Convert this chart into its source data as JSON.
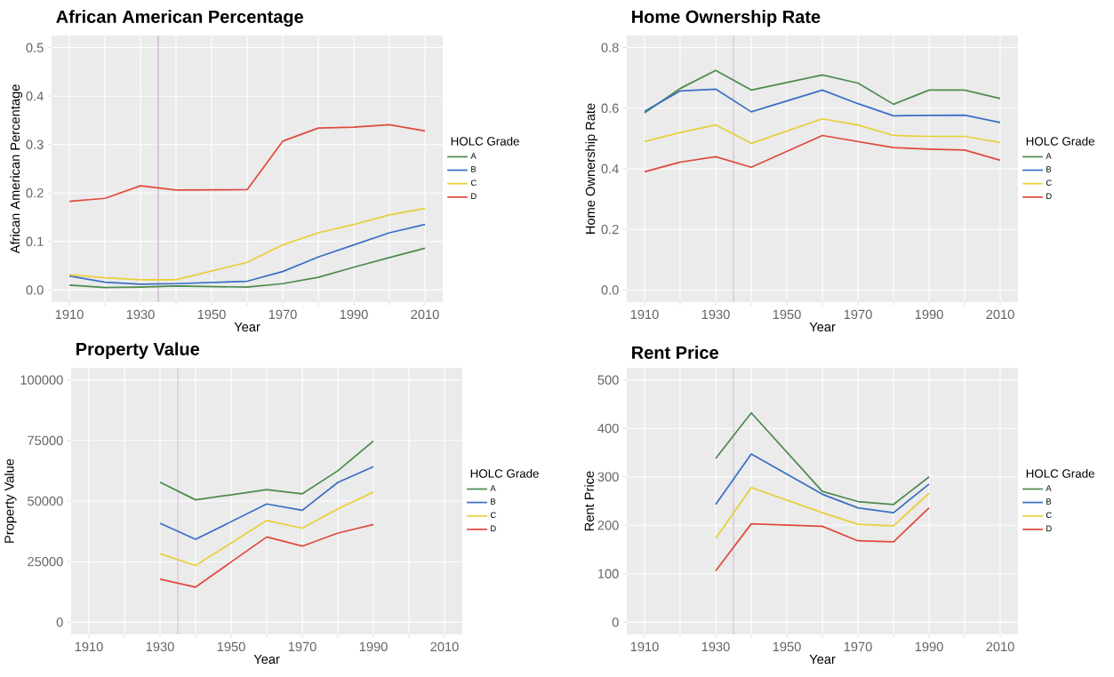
{
  "chart_data": [
    {
      "type": "line",
      "title": "African American Percentage",
      "xlabel": "Year",
      "ylabel": "African American Percentage",
      "legend_title": "HOLC Grade",
      "legend": "right",
      "grid": true,
      "x": [
        1910,
        1920,
        1930,
        1940,
        1960,
        1970,
        1980,
        1990,
        2000,
        2010
      ],
      "xlim": [
        1905,
        2015
      ],
      "xticks": [
        1910,
        {
          "value": 1920,
          "label": null
        },
        1930,
        {
          "value": 1940,
          "label": null
        },
        1950,
        {
          "value": 1960,
          "label": null
        },
        1970,
        {
          "value": 1980,
          "label": null
        },
        1990,
        {
          "value": 2000,
          "label": null
        },
        2010
      ],
      "ylim": [
        -0.025,
        0.525
      ],
      "yticks": [
        {
          "value": 0,
          "label": "0.0"
        },
        {
          "value": 0.1,
          "label": "0.1"
        },
        {
          "value": 0.2,
          "label": "0.2"
        },
        {
          "value": 0.3,
          "label": "0.3"
        },
        {
          "value": 0.4,
          "label": "0.4"
        },
        {
          "value": 0.5,
          "label": "0.5"
        }
      ],
      "ref_lines": [
        {
          "axis": "x",
          "value": 1935,
          "color": "#c9a3cf"
        }
      ],
      "series": [
        {
          "name": "A",
          "color": "#4e8a4e",
          "values": [
            0.01,
            0.005,
            0.006,
            0.008,
            0.006,
            0.013,
            0.026,
            0.047,
            0.067,
            0.086
          ]
        },
        {
          "name": "B",
          "color": "#3a6fc4",
          "values": [
            0.029,
            0.016,
            0.012,
            0.013,
            0.018,
            0.038,
            0.068,
            0.093,
            0.118,
            0.135
          ]
        },
        {
          "name": "C",
          "color": "#e8cf3a",
          "values": [
            0.031,
            0.025,
            0.021,
            0.021,
            0.057,
            0.093,
            0.118,
            0.135,
            0.155,
            0.168
          ]
        },
        {
          "name": "D",
          "color": "#e04a3e",
          "values": [
            0.183,
            0.189,
            0.215,
            0.206,
            0.207,
            0.307,
            0.334,
            0.336,
            0.341,
            0.328
          ]
        }
      ]
    },
    {
      "type": "line",
      "title": "Home Ownership Rate",
      "xlabel": "Year",
      "ylabel": "Home Ownership Rate",
      "legend_title": "HOLC Grade",
      "legend": "right",
      "grid": true,
      "x": [
        1910,
        1920,
        1930,
        1940,
        1960,
        1970,
        1980,
        1990,
        2000,
        2010
      ],
      "xlim": [
        1905,
        2015
      ],
      "xticks": [
        1910,
        {
          "value": 1920,
          "label": null
        },
        1930,
        {
          "value": 1940,
          "label": null
        },
        1950,
        {
          "value": 1960,
          "label": null
        },
        1970,
        {
          "value": 1980,
          "label": null
        },
        1990,
        {
          "value": 2000,
          "label": null
        },
        2010
      ],
      "ylim": [
        -0.04,
        0.84
      ],
      "yticks": [
        {
          "value": 0,
          "label": "0.0"
        },
        {
          "value": 0.2,
          "label": "0.2"
        },
        {
          "value": 0.4,
          "label": "0.4"
        },
        {
          "value": 0.6,
          "label": "0.6"
        },
        {
          "value": 0.8,
          "label": "0.8"
        }
      ],
      "ref_lines": [
        {
          "axis": "x",
          "value": 1935,
          "color": "#c9a3cf"
        }
      ],
      "series": [
        {
          "name": "A",
          "color": "#4e8a4e",
          "values": [
            0.585,
            0.665,
            0.725,
            0.66,
            0.71,
            0.683,
            0.613,
            0.66,
            0.66,
            0.632
          ]
        },
        {
          "name": "B",
          "color": "#3a6fc4",
          "values": [
            0.59,
            0.657,
            0.663,
            0.588,
            0.66,
            0.615,
            0.575,
            0.576,
            0.577,
            0.553
          ]
        },
        {
          "name": "C",
          "color": "#e8cf3a",
          "values": [
            0.49,
            0.52,
            0.545,
            0.484,
            0.565,
            0.545,
            0.51,
            0.507,
            0.507,
            0.487
          ]
        },
        {
          "name": "D",
          "color": "#e04a3e",
          "values": [
            0.39,
            0.422,
            0.44,
            0.405,
            0.51,
            0.49,
            0.47,
            0.465,
            0.462,
            0.428
          ]
        }
      ]
    },
    {
      "type": "line",
      "title": "Property Value",
      "xlabel": "Year",
      "ylabel": "Property Value",
      "legend_title": "HOLC Grade",
      "legend": "right",
      "grid": true,
      "x": [
        1930,
        1940,
        1960,
        1970,
        1980,
        1990
      ],
      "xlim": [
        1905,
        2015
      ],
      "xticks": [
        1910,
        {
          "value": 1920,
          "label": null
        },
        1930,
        {
          "value": 1940,
          "label": null
        },
        1950,
        {
          "value": 1960,
          "label": null
        },
        1970,
        {
          "value": 1980,
          "label": null
        },
        1990,
        {
          "value": 2000,
          "label": null
        },
        2010
      ],
      "ylim": [
        -5000,
        105000
      ],
      "yticks": [
        0,
        25000,
        50000,
        75000,
        100000
      ],
      "ref_lines": [
        {
          "axis": "x",
          "value": 1935,
          "color": "#c9a3cf"
        }
      ],
      "series": [
        {
          "name": "A",
          "color": "#4e8a4e",
          "values": [
            57800,
            50500,
            54700,
            53000,
            62500,
            74800
          ]
        },
        {
          "name": "B",
          "color": "#3a6fc4",
          "values": [
            40800,
            34200,
            48800,
            46200,
            57700,
            64200
          ]
        },
        {
          "name": "C",
          "color": "#e8cf3a",
          "values": [
            28200,
            23400,
            42000,
            38800,
            46800,
            53700
          ]
        },
        {
          "name": "D",
          "color": "#e04a3e",
          "values": [
            17800,
            14500,
            35200,
            31400,
            36800,
            40300
          ]
        }
      ]
    },
    {
      "type": "line",
      "title": "Rent Price",
      "xlabel": "Year",
      "ylabel": "Rent Price",
      "legend_title": "HOLC Grade",
      "legend": "right",
      "grid": true,
      "x": [
        1930,
        1940,
        1960,
        1970,
        1980,
        1990
      ],
      "xlim": [
        1905,
        2015
      ],
      "xticks": [
        1910,
        {
          "value": 1920,
          "label": null
        },
        1930,
        {
          "value": 1940,
          "label": null
        },
        1950,
        {
          "value": 1960,
          "label": null
        },
        1970,
        {
          "value": 1980,
          "label": null
        },
        1990,
        {
          "value": 2000,
          "label": null
        },
        2010
      ],
      "ylim": [
        -25,
        525
      ],
      "yticks": [
        0,
        100,
        200,
        300,
        400,
        500
      ],
      "ref_lines": [
        {
          "axis": "x",
          "value": 1935,
          "color": "#c9a3cf"
        }
      ],
      "series": [
        {
          "name": "A",
          "color": "#4e8a4e",
          "values": [
            338,
            432,
            270,
            249,
            243,
            300
          ]
        },
        {
          "name": "B",
          "color": "#3a6fc4",
          "values": [
            243,
            347,
            264,
            236,
            226,
            285
          ]
        },
        {
          "name": "C",
          "color": "#e8cf3a",
          "values": [
            173,
            278,
            226,
            202,
            199,
            266
          ]
        },
        {
          "name": "D",
          "color": "#e04a3e",
          "values": [
            106,
            203,
            198,
            168,
            166,
            236
          ]
        }
      ]
    }
  ]
}
